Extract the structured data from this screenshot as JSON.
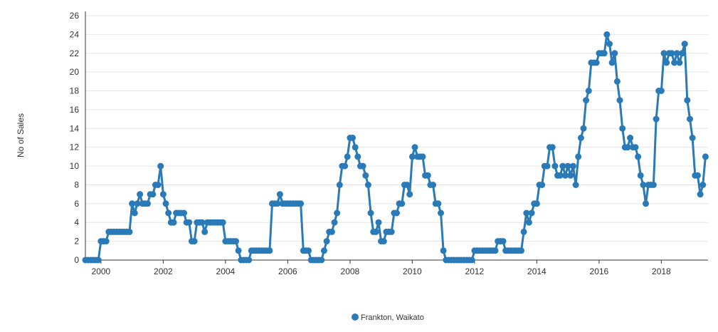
{
  "chart_data": {
    "type": "line",
    "title": "",
    "xlabel": "",
    "ylabel": "No of Sales",
    "ylim": [
      0,
      26
    ],
    "y_ticks": [
      0,
      2,
      4,
      6,
      8,
      10,
      12,
      14,
      16,
      18,
      20,
      22,
      24,
      26
    ],
    "xlim": [
      "1999-07",
      "2019-07"
    ],
    "x_ticks": [
      "2000",
      "2002",
      "2004",
      "2006",
      "2008",
      "2010",
      "2012",
      "2014",
      "2016",
      "2018"
    ],
    "grid": "horizontal",
    "legend_position": "bottom-center",
    "series": [
      {
        "name": "Frankton, Waikato",
        "color": "#2a7ab8",
        "points": [
          [
            "1999-07",
            0
          ],
          [
            "1999-08",
            0
          ],
          [
            "1999-09",
            0
          ],
          [
            "1999-10",
            0
          ],
          [
            "1999-11",
            0
          ],
          [
            "1999-12",
            0
          ],
          [
            "2000-01",
            2
          ],
          [
            "2000-02",
            2
          ],
          [
            "2000-03",
            2
          ],
          [
            "2000-04",
            3
          ],
          [
            "2000-05",
            3
          ],
          [
            "2000-06",
            3
          ],
          [
            "2000-07",
            3
          ],
          [
            "2000-08",
            3
          ],
          [
            "2000-09",
            3
          ],
          [
            "2000-10",
            3
          ],
          [
            "2000-11",
            3
          ],
          [
            "2000-12",
            3
          ],
          [
            "2001-01",
            6
          ],
          [
            "2001-02",
            5
          ],
          [
            "2001-03",
            6
          ],
          [
            "2001-04",
            7
          ],
          [
            "2001-05",
            6
          ],
          [
            "2001-06",
            6
          ],
          [
            "2001-07",
            6
          ],
          [
            "2001-08",
            7
          ],
          [
            "2001-09",
            7
          ],
          [
            "2001-10",
            8
          ],
          [
            "2001-11",
            8
          ],
          [
            "2001-12",
            10
          ],
          [
            "2002-01",
            7
          ],
          [
            "2002-02",
            6
          ],
          [
            "2002-03",
            5
          ],
          [
            "2002-04",
            4
          ],
          [
            "2002-05",
            4
          ],
          [
            "2002-06",
            5
          ],
          [
            "2002-07",
            5
          ],
          [
            "2002-08",
            5
          ],
          [
            "2002-09",
            5
          ],
          [
            "2002-10",
            4
          ],
          [
            "2002-11",
            4
          ],
          [
            "2002-12",
            2
          ],
          [
            "2003-01",
            2
          ],
          [
            "2003-02",
            4
          ],
          [
            "2003-03",
            4
          ],
          [
            "2003-04",
            4
          ],
          [
            "2003-05",
            3
          ],
          [
            "2003-06",
            4
          ],
          [
            "2003-07",
            4
          ],
          [
            "2003-08",
            4
          ],
          [
            "2003-09",
            4
          ],
          [
            "2003-10",
            4
          ],
          [
            "2003-11",
            4
          ],
          [
            "2003-12",
            4
          ],
          [
            "2004-01",
            2
          ],
          [
            "2004-02",
            2
          ],
          [
            "2004-03",
            2
          ],
          [
            "2004-04",
            2
          ],
          [
            "2004-05",
            2
          ],
          [
            "2004-06",
            1
          ],
          [
            "2004-07",
            0
          ],
          [
            "2004-08",
            0
          ],
          [
            "2004-09",
            0
          ],
          [
            "2004-10",
            0
          ],
          [
            "2004-11",
            1
          ],
          [
            "2004-12",
            1
          ],
          [
            "2005-01",
            1
          ],
          [
            "2005-02",
            1
          ],
          [
            "2005-03",
            1
          ],
          [
            "2005-04",
            1
          ],
          [
            "2005-05",
            1
          ],
          [
            "2005-06",
            1
          ],
          [
            "2005-07",
            6
          ],
          [
            "2005-08",
            6
          ],
          [
            "2005-09",
            6
          ],
          [
            "2005-10",
            7
          ],
          [
            "2005-11",
            6
          ],
          [
            "2005-12",
            6
          ],
          [
            "2006-01",
            6
          ],
          [
            "2006-02",
            6
          ],
          [
            "2006-03",
            6
          ],
          [
            "2006-04",
            6
          ],
          [
            "2006-05",
            6
          ],
          [
            "2006-06",
            6
          ],
          [
            "2006-07",
            1
          ],
          [
            "2006-08",
            1
          ],
          [
            "2006-09",
            1
          ],
          [
            "2006-10",
            0
          ],
          [
            "2006-11",
            0
          ],
          [
            "2006-12",
            0
          ],
          [
            "2007-01",
            0
          ],
          [
            "2007-02",
            0
          ],
          [
            "2007-03",
            1
          ],
          [
            "2007-04",
            2
          ],
          [
            "2007-05",
            3
          ],
          [
            "2007-06",
            3
          ],
          [
            "2007-07",
            4
          ],
          [
            "2007-08",
            5
          ],
          [
            "2007-09",
            8
          ],
          [
            "2007-10",
            10
          ],
          [
            "2007-11",
            10
          ],
          [
            "2007-12",
            11
          ],
          [
            "2008-01",
            13
          ],
          [
            "2008-02",
            13
          ],
          [
            "2008-03",
            12
          ],
          [
            "2008-04",
            11
          ],
          [
            "2008-05",
            10
          ],
          [
            "2008-06",
            10
          ],
          [
            "2008-07",
            9
          ],
          [
            "2008-08",
            8
          ],
          [
            "2008-09",
            5
          ],
          [
            "2008-10",
            3
          ],
          [
            "2008-11",
            3
          ],
          [
            "2008-12",
            4
          ],
          [
            "2009-01",
            2
          ],
          [
            "2009-02",
            2
          ],
          [
            "2009-03",
            3
          ],
          [
            "2009-04",
            3
          ],
          [
            "2009-05",
            3
          ],
          [
            "2009-06",
            5
          ],
          [
            "2009-07",
            5
          ],
          [
            "2009-08",
            6
          ],
          [
            "2009-09",
            6
          ],
          [
            "2009-10",
            8
          ],
          [
            "2009-11",
            8
          ],
          [
            "2009-12",
            7
          ],
          [
            "2010-01",
            11
          ],
          [
            "2010-02",
            12
          ],
          [
            "2010-03",
            11
          ],
          [
            "2010-04",
            11
          ],
          [
            "2010-05",
            11
          ],
          [
            "2010-06",
            9
          ],
          [
            "2010-07",
            9
          ],
          [
            "2010-08",
            8
          ],
          [
            "2010-09",
            8
          ],
          [
            "2010-10",
            6
          ],
          [
            "2010-11",
            6
          ],
          [
            "2010-12",
            5
          ],
          [
            "2011-01",
            1
          ],
          [
            "2011-02",
            0
          ],
          [
            "2011-03",
            0
          ],
          [
            "2011-04",
            0
          ],
          [
            "2011-05",
            0
          ],
          [
            "2011-06",
            0
          ],
          [
            "2011-07",
            0
          ],
          [
            "2011-08",
            0
          ],
          [
            "2011-09",
            0
          ],
          [
            "2011-10",
            0
          ],
          [
            "2011-11",
            0
          ],
          [
            "2011-12",
            0
          ],
          [
            "2012-01",
            1
          ],
          [
            "2012-02",
            1
          ],
          [
            "2012-03",
            1
          ],
          [
            "2012-04",
            1
          ],
          [
            "2012-05",
            1
          ],
          [
            "2012-06",
            1
          ],
          [
            "2012-07",
            1
          ],
          [
            "2012-08",
            1
          ],
          [
            "2012-09",
            1
          ],
          [
            "2012-10",
            2
          ],
          [
            "2012-11",
            2
          ],
          [
            "2012-12",
            2
          ],
          [
            "2013-01",
            1
          ],
          [
            "2013-02",
            1
          ],
          [
            "2013-03",
            1
          ],
          [
            "2013-04",
            1
          ],
          [
            "2013-05",
            1
          ],
          [
            "2013-06",
            1
          ],
          [
            "2013-07",
            1
          ],
          [
            "2013-08",
            3
          ],
          [
            "2013-09",
            5
          ],
          [
            "2013-10",
            4
          ],
          [
            "2013-11",
            5
          ],
          [
            "2013-12",
            6
          ],
          [
            "2014-01",
            6
          ],
          [
            "2014-02",
            8
          ],
          [
            "2014-03",
            8
          ],
          [
            "2014-04",
            10
          ],
          [
            "2014-05",
            10
          ],
          [
            "2014-06",
            12
          ],
          [
            "2014-07",
            12
          ],
          [
            "2014-08",
            10
          ],
          [
            "2014-09",
            9
          ],
          [
            "2014-10",
            9
          ],
          [
            "2014-11",
            10
          ],
          [
            "2014-12",
            9
          ],
          [
            "2015-01",
            10
          ],
          [
            "2015-02",
            9
          ],
          [
            "2015-03",
            10
          ],
          [
            "2015-04",
            8
          ],
          [
            "2015-05",
            11
          ],
          [
            "2015-06",
            13
          ],
          [
            "2015-07",
            14
          ],
          [
            "2015-08",
            17
          ],
          [
            "2015-09",
            18
          ],
          [
            "2015-10",
            21
          ],
          [
            "2015-11",
            21
          ],
          [
            "2015-12",
            21
          ],
          [
            "2016-01",
            22
          ],
          [
            "2016-02",
            22
          ],
          [
            "2016-03",
            22
          ],
          [
            "2016-04",
            24
          ],
          [
            "2016-05",
            23
          ],
          [
            "2016-06",
            21
          ],
          [
            "2016-07",
            22
          ],
          [
            "2016-08",
            19
          ],
          [
            "2016-09",
            17
          ],
          [
            "2016-10",
            14
          ],
          [
            "2016-11",
            12
          ],
          [
            "2016-12",
            12
          ],
          [
            "2017-01",
            13
          ],
          [
            "2017-02",
            12
          ],
          [
            "2017-03",
            12
          ],
          [
            "2017-04",
            11
          ],
          [
            "2017-05",
            9
          ],
          [
            "2017-06",
            8
          ],
          [
            "2017-07",
            6
          ],
          [
            "2017-08",
            8
          ],
          [
            "2017-09",
            8
          ],
          [
            "2017-10",
            8
          ],
          [
            "2017-11",
            15
          ],
          [
            "2017-12",
            18
          ],
          [
            "2018-01",
            18
          ],
          [
            "2018-02",
            22
          ],
          [
            "2018-03",
            21
          ],
          [
            "2018-04",
            22
          ],
          [
            "2018-05",
            22
          ],
          [
            "2018-06",
            21
          ],
          [
            "2018-07",
            22
          ],
          [
            "2018-08",
            21
          ],
          [
            "2018-09",
            22
          ],
          [
            "2018-10",
            23
          ],
          [
            "2018-11",
            17
          ],
          [
            "2018-12",
            15
          ],
          [
            "2019-01",
            13
          ],
          [
            "2019-02",
            9
          ],
          [
            "2019-03",
            9
          ],
          [
            "2019-04",
            7
          ],
          [
            "2019-05",
            8
          ],
          [
            "2019-06",
            11
          ]
        ]
      }
    ]
  }
}
